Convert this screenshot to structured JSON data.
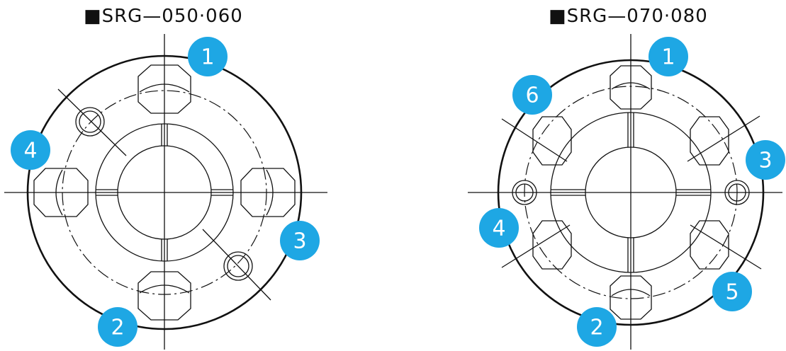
{
  "diagrams": [
    {
      "title": "■SRG—050·060",
      "callouts": [
        "1",
        "2",
        "3",
        "4"
      ]
    },
    {
      "title": "■SRG—070·080",
      "callouts": [
        "1",
        "2",
        "3",
        "4",
        "5",
        "6"
      ]
    }
  ],
  "colors": {
    "callout": "#1ea7e4",
    "line": "#111111"
  }
}
